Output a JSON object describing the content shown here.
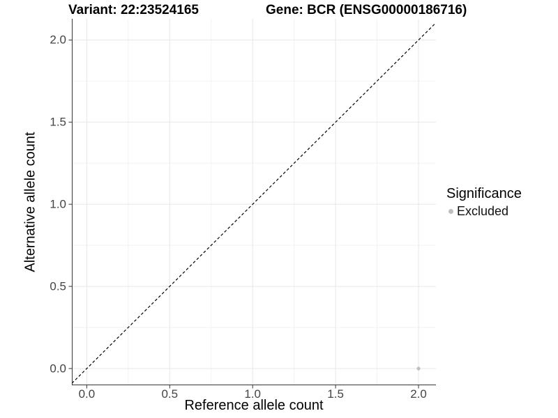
{
  "figure": {
    "background": "#ffffff"
  },
  "title": {
    "variant_part": "Variant: 22:23524165",
    "gene_part": "Gene: BCR (ENSG00000186716)"
  },
  "chart_data": {
    "type": "scatter",
    "title": "Variant: 22:23524165    Gene: BCR (ENSG00000186716)",
    "xlabel": "Reference allele count",
    "ylabel": "Alternative allele count",
    "xlim": [
      -0.09,
      2.105
    ],
    "ylim": [
      -0.102,
      2.129
    ],
    "x_ticks": [
      0.0,
      0.5,
      1.0,
      1.5,
      2.0
    ],
    "x_tick_labels": [
      "0.0",
      "0.5",
      "1.0",
      "1.5",
      "2.0"
    ],
    "y_ticks": [
      0.0,
      0.5,
      1.0,
      1.5,
      2.0
    ],
    "y_tick_labels": [
      "0.0",
      "0.5",
      "1.0",
      "1.5",
      "2.0"
    ],
    "x_minor_ticks": [
      0.25,
      0.75,
      1.25,
      1.75
    ],
    "y_minor_ticks": [
      0.25,
      0.75,
      1.25,
      1.75
    ],
    "grid": true,
    "legend_position": "right",
    "series": [
      {
        "name": "Excluded",
        "color": "#bebebe",
        "points": [
          {
            "x": 2.0,
            "y": 0.0
          }
        ]
      }
    ],
    "reference_line": {
      "type": "identity",
      "slope": 1,
      "intercept": 0,
      "style": "dashed",
      "color": "#000000"
    },
    "legend": {
      "title": "Significance",
      "items": [
        {
          "label": "Excluded",
          "color": "#bebebe"
        }
      ]
    },
    "colors": {
      "grid_major": "#e7e7e7",
      "grid_minor": "#f2f2f2",
      "axis_line": "#333333",
      "tick_text": "#444444",
      "point": "#bebebe"
    }
  }
}
